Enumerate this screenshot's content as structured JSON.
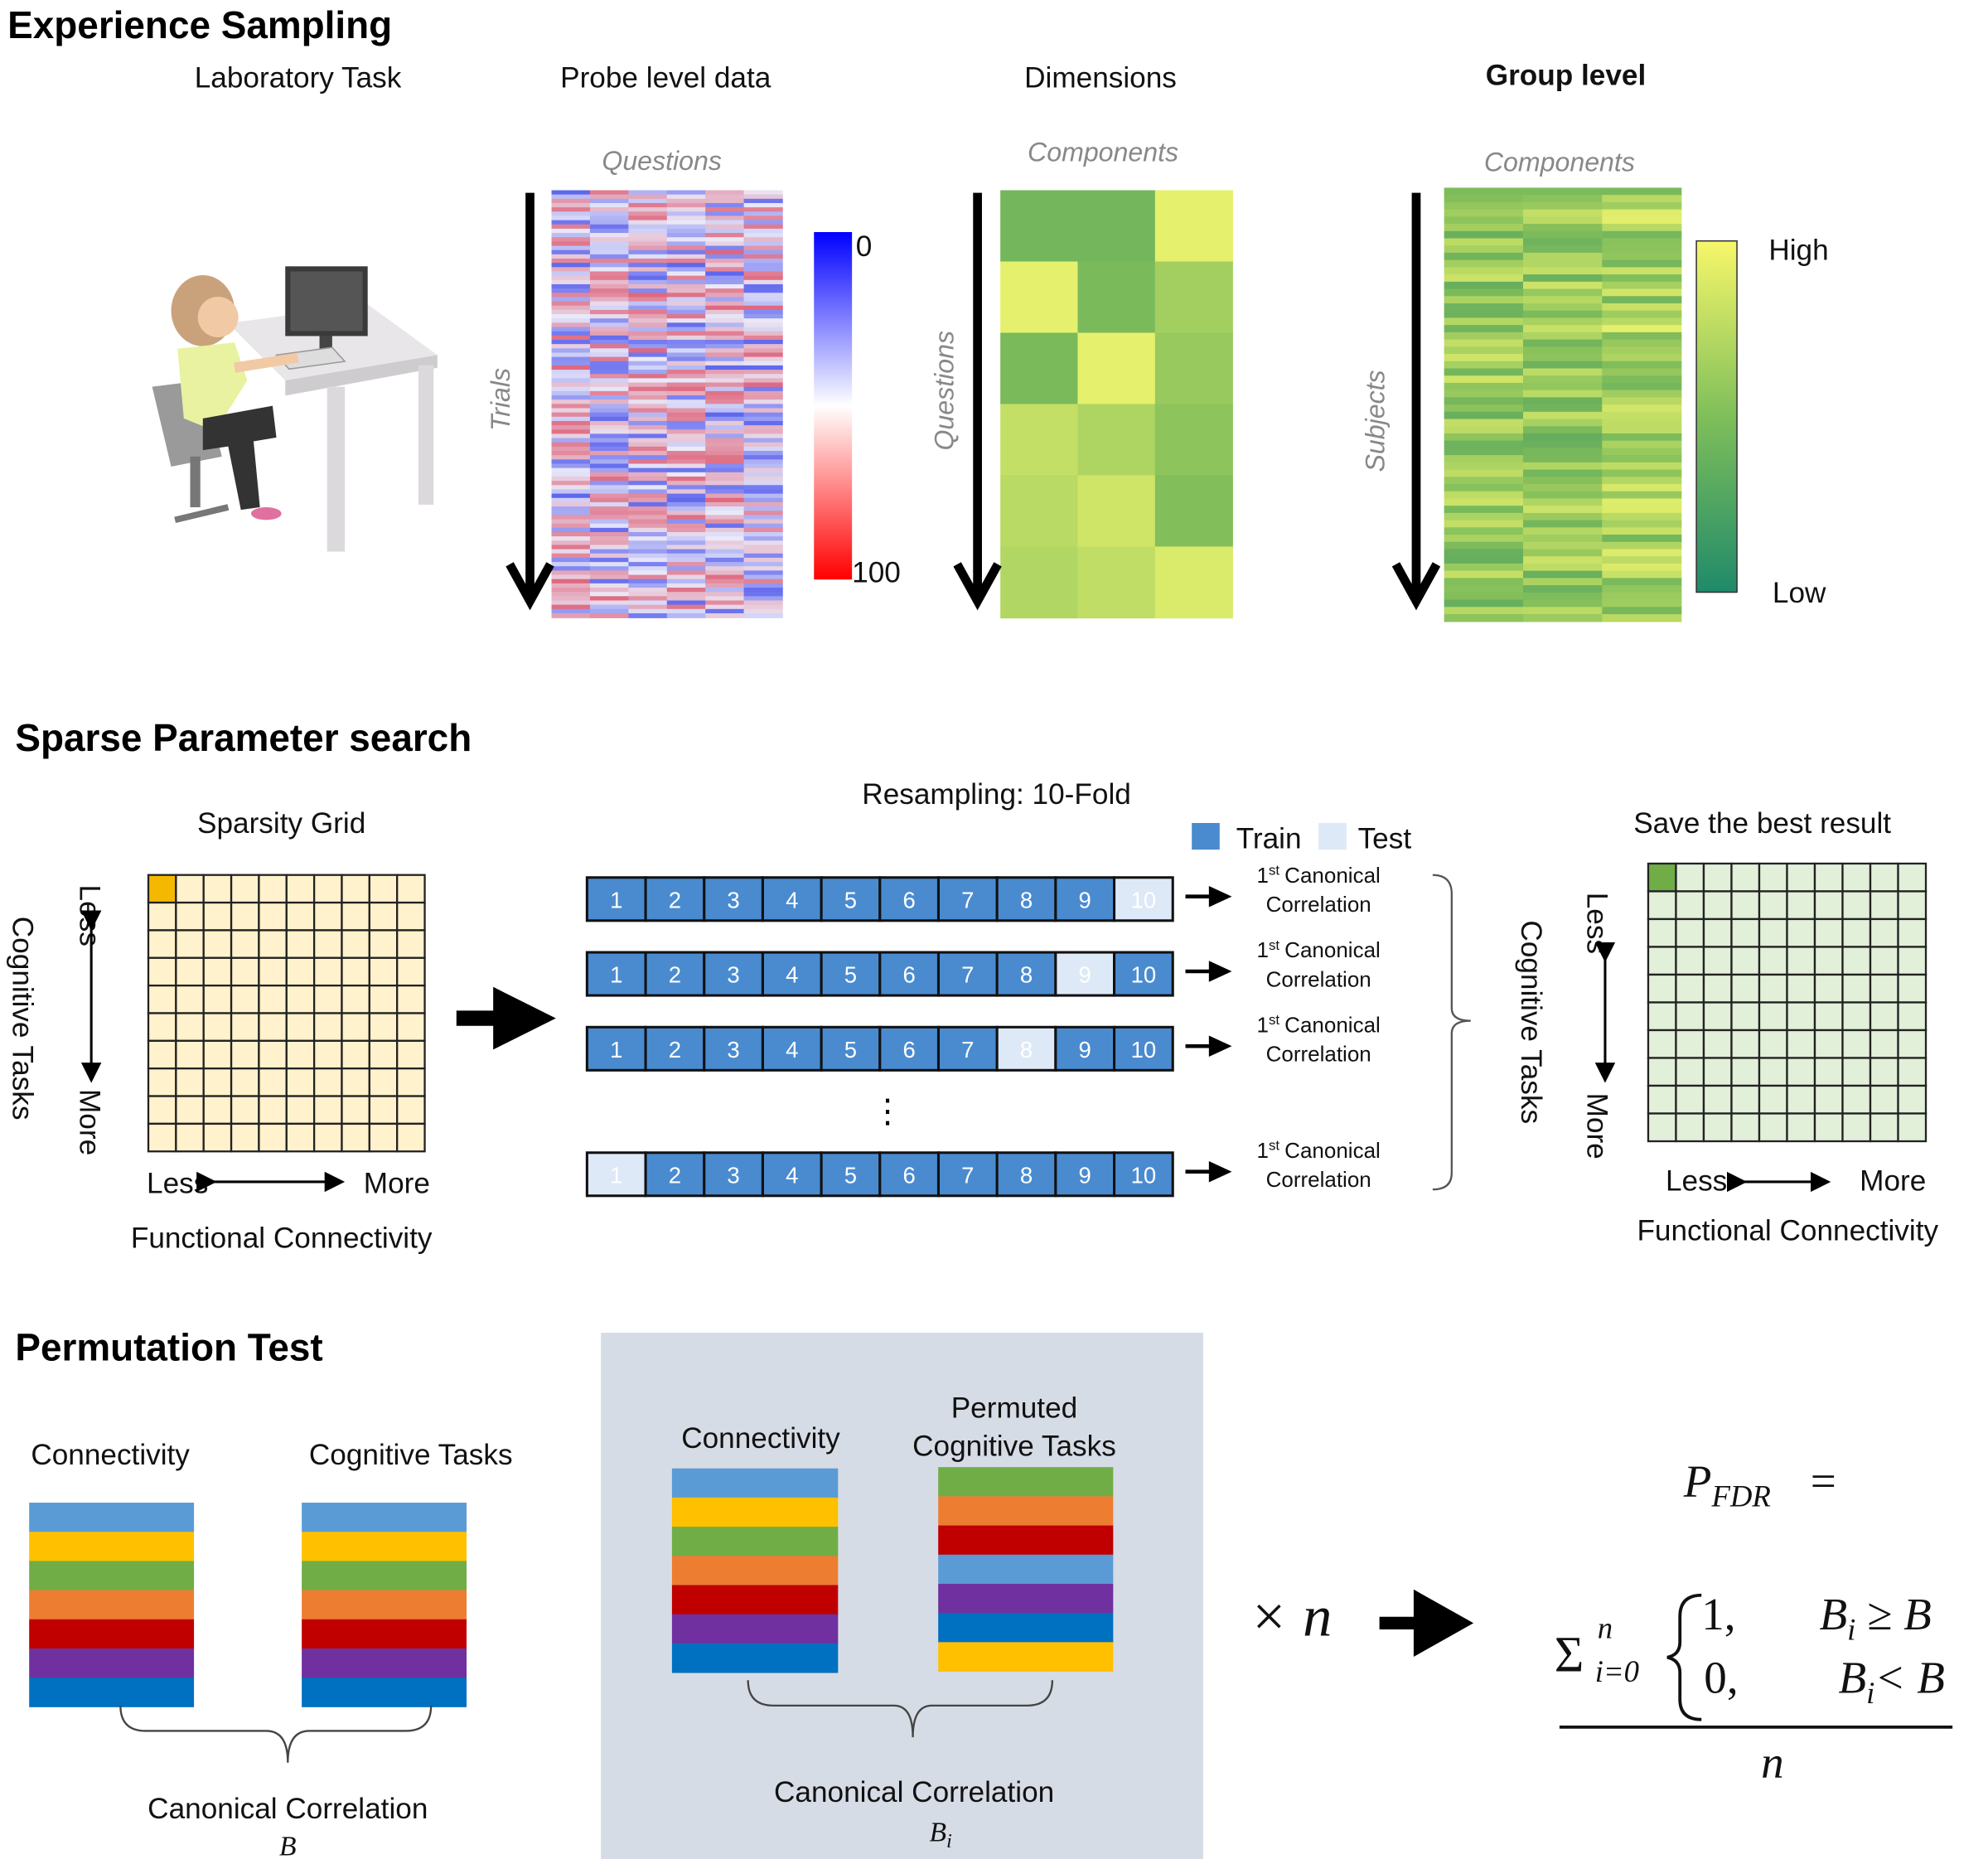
{
  "experience_sampling": {
    "title": "Experience Sampling",
    "laboratory_task": "Laboratory Task",
    "probe": {
      "title": "Probe level data",
      "x_label": "Questions",
      "y_label": "Trials",
      "scale_min": "0",
      "scale_max": "100"
    },
    "dimensions": {
      "title": "Dimensions",
      "x_label": "Components",
      "y_label": "Questions"
    },
    "group": {
      "title": "Group level",
      "title_color": "#ed7d31",
      "x_label": "Components",
      "y_label": "Subjects",
      "scale_high": "High",
      "scale_low": "Low"
    }
  },
  "sparse_search": {
    "title": "Sparse Parameter search",
    "grid": {
      "title": "Sparsity Grid",
      "y_label": "Cognitive Tasks",
      "y_less": "Less",
      "y_more": "More",
      "x_less": "Less",
      "x_more": "More",
      "x_label": "Functional Connectivity",
      "cell_color": "#fff2cc",
      "selected_color": "#f5b800"
    },
    "resampling": {
      "title": "Resampling: 10-Fold",
      "legend": {
        "train": "Train",
        "test": "Test"
      },
      "train_color": "#4a8bd0",
      "test_color": "#dde9f6",
      "rows": [
        {
          "folds": [
            "1",
            "2",
            "3",
            "4",
            "5",
            "6",
            "7",
            "8",
            "9",
            "10"
          ],
          "test_fold": "10",
          "result": {
            "ordinal": "1",
            "suffix": "st",
            "line1": "Canonical",
            "line2": "Correlation"
          }
        },
        {
          "folds": [
            "1",
            "2",
            "3",
            "4",
            "5",
            "6",
            "7",
            "8",
            "9",
            "10"
          ],
          "test_fold": "9",
          "result": {
            "ordinal": "1",
            "suffix": "st",
            "line1": "Canonical",
            "line2": "Correlation"
          }
        },
        {
          "folds": [
            "1",
            "2",
            "3",
            "4",
            "5",
            "6",
            "7",
            "8",
            "9",
            "10"
          ],
          "test_fold": "8",
          "result": {
            "ordinal": "1",
            "suffix": "st",
            "line1": "Canonical",
            "line2": "Correlation"
          }
        },
        {
          "folds": [
            "1",
            "2",
            "3",
            "4",
            "5",
            "6",
            "7",
            "8",
            "9",
            "10"
          ],
          "test_fold": "1",
          "result": {
            "ordinal": "1",
            "suffix": "st",
            "line1": "Canonical",
            "line2": "Correlation"
          }
        }
      ]
    },
    "best": {
      "title": "Save the best result",
      "y_label": "Cognitive Tasks",
      "y_less": "Less",
      "y_more": "More",
      "x_less": "Less",
      "x_more": "More",
      "x_label": "Functional Connectivity",
      "cell_color": "#e2efd9",
      "selected_color": "#70ad47"
    }
  },
  "permutation_test": {
    "title": "Permutation Test",
    "original": {
      "connectivity": "Connectivity",
      "tasks": "Cognitive Tasks",
      "result": "Canonical Correlation",
      "symbol": "B",
      "connectivity_colors": [
        "#5b9bd5",
        "#ffc000",
        "#70ad47",
        "#ed7d31",
        "#c00000",
        "#7030a0",
        "#0070c0"
      ],
      "tasks_colors": [
        "#5b9bd5",
        "#ffc000",
        "#70ad47",
        "#ed7d31",
        "#c00000",
        "#7030a0",
        "#0070c0"
      ]
    },
    "permuted": {
      "connectivity": "Connectivity",
      "tasks_line1": "Permuted",
      "tasks_line2": "Cognitive Tasks",
      "result": "Canonical Correlation",
      "symbol": "B",
      "symbol_sub": "i",
      "background": "#d6dce5",
      "connectivity_colors": [
        "#5b9bd5",
        "#ffc000",
        "#70ad47",
        "#ed7d31",
        "#c00000",
        "#7030a0",
        "#0070c0"
      ],
      "tasks_colors": [
        "#70ad47",
        "#ed7d31",
        "#c00000",
        "#5b9bd5",
        "#7030a0",
        "#0070c0",
        "#ffc000"
      ]
    },
    "repeat": "× n",
    "formula": {
      "lhs": "P",
      "lhs_sub": "FDR",
      "equals": "=",
      "sum": "Σ",
      "sum_sup": "n",
      "sum_sub": "i=0",
      "case1_value": "1,",
      "case1_var": "B",
      "case1_sub": "i",
      "case1_rel": " ≥ B",
      "case2_value": "0,",
      "case2_var": "B",
      "case2_sub": "i",
      "case2_rel": "< B",
      "denominator": "n"
    }
  }
}
